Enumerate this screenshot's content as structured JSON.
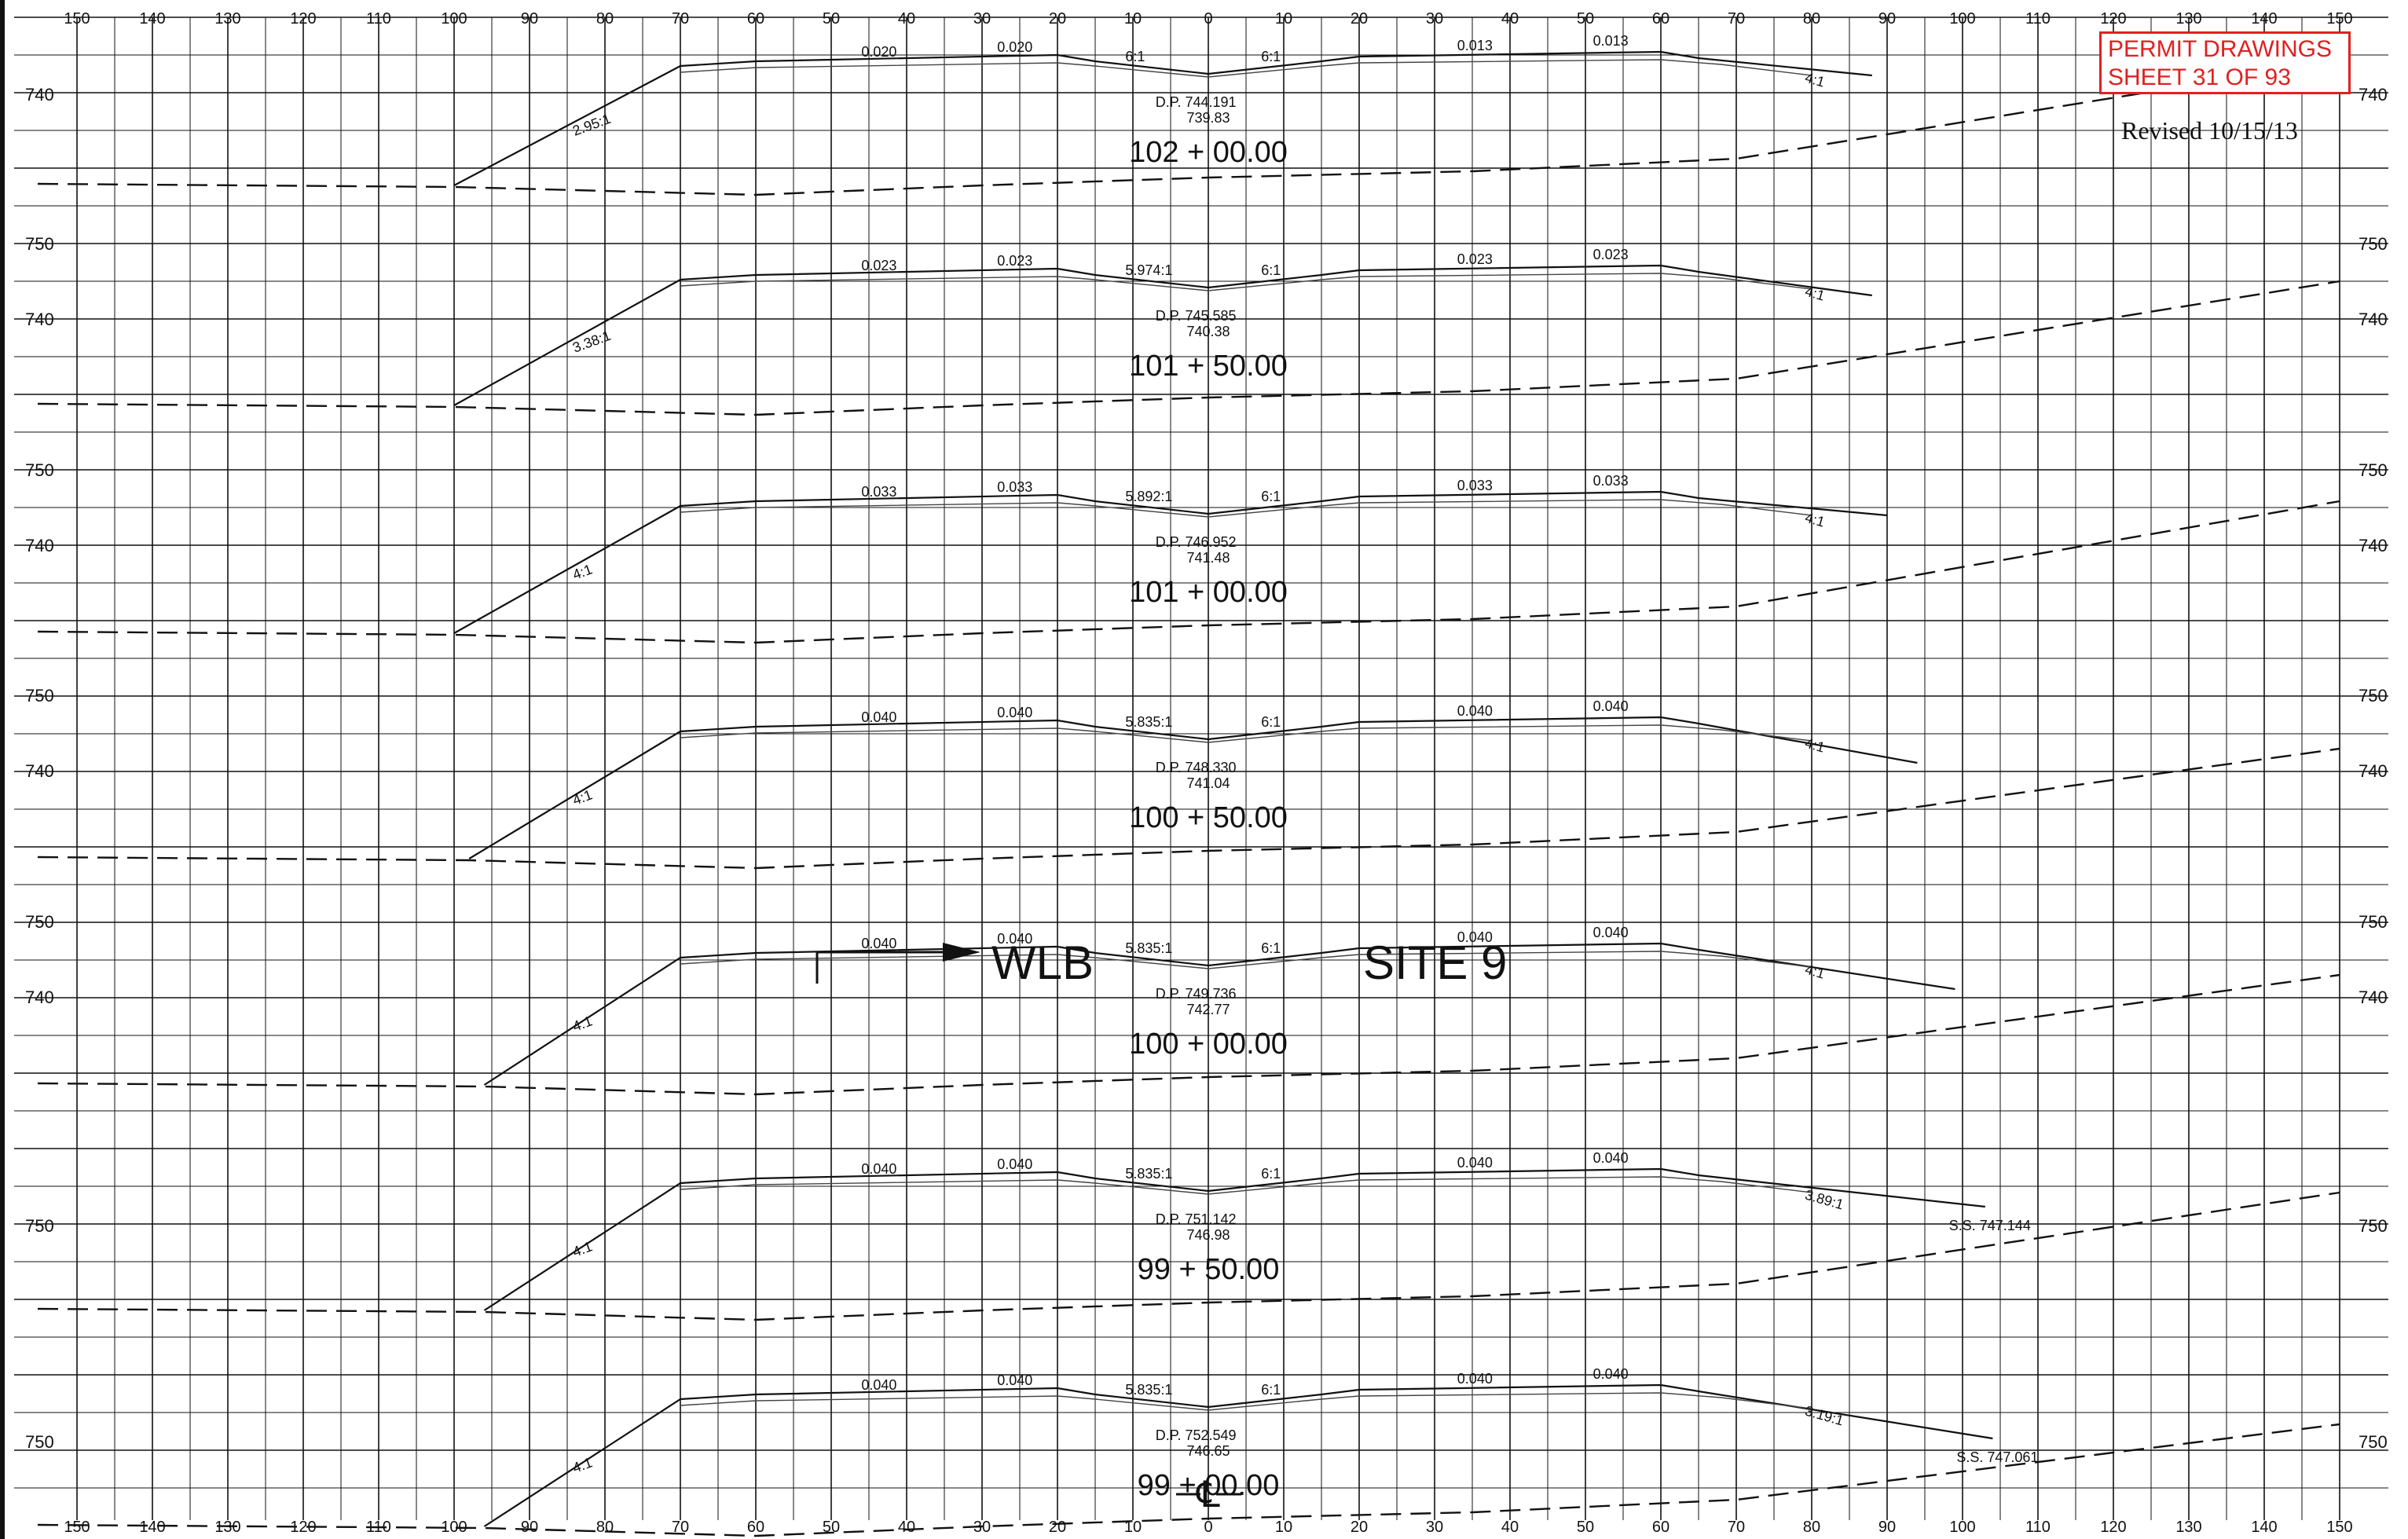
{
  "permit_box": {
    "line1": "PERMIT DRAWINGS",
    "line2": "SHEET 31 OF 93",
    "color": "#e02020"
  },
  "revised": "Revised 10/15/13",
  "offset_ticks": [
    "150",
    "140",
    "130",
    "120",
    "110",
    "100",
    "90",
    "80",
    "70",
    "60",
    "50",
    "40",
    "30",
    "20",
    "10",
    "0",
    "10",
    "20",
    "30",
    "40",
    "50",
    "60",
    "70",
    "80",
    "90",
    "100",
    "110",
    "120",
    "130",
    "140",
    "150"
  ],
  "centerline_symbol": "℄",
  "labels": {
    "wlb": "WLB",
    "site": "SITE  9"
  },
  "sections": [
    {
      "station": "102 + 00.00",
      "dp": "D.P.    744.191",
      "ground_elev": "739.83",
      "left_slope": "2.95:1",
      "right_slope": "4:1",
      "left_xslopes": [
        "0.020",
        "0.020"
      ],
      "right_xslopes": [
        "0.013",
        "0.013"
      ],
      "ditch_left": "6:1",
      "ditch_right": "6:1",
      "elev_labels": [
        "740"
      ],
      "right_note": ""
    },
    {
      "station": "101 + 50.00",
      "dp": "D.P.    745.585",
      "ground_elev": "740.38",
      "left_slope": "3.38:1",
      "right_slope": "4:1",
      "left_xslopes": [
        "0.023",
        "0.023"
      ],
      "right_xslopes": [
        "0.023",
        "0.023"
      ],
      "ditch_left": "5.974:1",
      "ditch_right": "6:1",
      "elev_labels": [
        "750",
        "740"
      ],
      "right_note": ""
    },
    {
      "station": "101 + 00.00",
      "dp": "D.P.    746.952",
      "ground_elev": "741.48",
      "left_slope": "4:1",
      "right_slope": "4:1",
      "left_xslopes": [
        "0.033",
        "0.033"
      ],
      "right_xslopes": [
        "0.033",
        "0.033"
      ],
      "ditch_left": "5.892:1",
      "ditch_right": "6:1",
      "elev_labels": [
        "750",
        "740"
      ],
      "right_note": ""
    },
    {
      "station": "100 + 50.00",
      "dp": "D.P.    748.330",
      "ground_elev": "741.04",
      "left_slope": "4:1",
      "right_slope": "4:1",
      "left_xslopes": [
        "0.040",
        "0.040"
      ],
      "right_xslopes": [
        "0.040",
        "0.040"
      ],
      "ditch_left": "5.835:1",
      "ditch_right": "6:1",
      "elev_labels": [
        "750",
        "740"
      ],
      "right_note": ""
    },
    {
      "station": "100 + 00.00",
      "dp": "D.P.    749.736",
      "ground_elev": "742.77",
      "left_slope": "4:1",
      "right_slope": "4:1",
      "left_xslopes": [
        "0.040",
        "0.040"
      ],
      "right_xslopes": [
        "0.040",
        "0.040"
      ],
      "ditch_left": "5.835:1",
      "ditch_right": "6:1",
      "elev_labels": [
        "750",
        "740"
      ],
      "right_note": ""
    },
    {
      "station": "99 + 50.00",
      "dp": "D.P.    751.142",
      "ground_elev": "746.98",
      "left_slope": "4:1",
      "right_slope": "3.89:1",
      "left_xslopes": [
        "0.040",
        "0.040"
      ],
      "right_xslopes": [
        "0.040",
        "0.040"
      ],
      "ditch_left": "5.835:1",
      "ditch_right": "6:1",
      "elev_labels": [
        "750"
      ],
      "right_note": "S.S. 747.144"
    },
    {
      "station": "99 + 00.00",
      "dp": "D.P.    752.549",
      "ground_elev": "746.65",
      "left_slope": "4:1",
      "right_slope": "3.19:1",
      "left_xslopes": [
        "0.040",
        "0.040"
      ],
      "right_xslopes": [
        "0.040",
        "0.040"
      ],
      "ditch_left": "5.835:1",
      "ditch_right": "6:1",
      "elev_labels": [
        "750"
      ],
      "right_note": "S.S. 747.061"
    }
  ]
}
